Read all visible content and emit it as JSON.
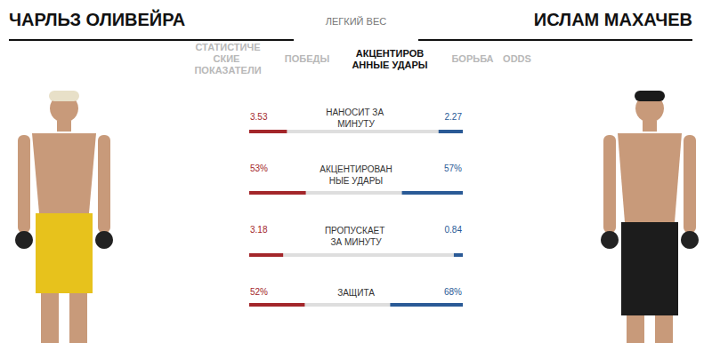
{
  "header": {
    "left_fighter": "ЧАРЛЬЗ ОЛИВЕЙРА",
    "division": "ЛЕГКИЙ ВЕС",
    "right_fighter": "ИСЛАМ МАХАЧЕВ"
  },
  "tabs": [
    {
      "label": "СТАТИСТИЧЕСКИЕ ПОКАЗАТЕЛИ",
      "active": false
    },
    {
      "label": "ПОБЕДЫ",
      "active": false
    },
    {
      "label": "АКЦЕНТИРОВАННЫЕ УДАРЫ",
      "active": true
    },
    {
      "label": "БОРЬБА",
      "active": false
    },
    {
      "label": "ODDS",
      "active": false
    }
  ],
  "chart_data": [
    {
      "type": "bar",
      "orientation": "horizontal",
      "title": "НАНОСИТ ЗА МИНУТУ",
      "xlim": [
        0,
        10
      ],
      "data_labels": true,
      "tick_labels": false,
      "series": [
        {
          "color": "#a3262a",
          "values": [
            3.53
          ]
        },
        {
          "color": "#2a5a96",
          "values": [
            2.27
          ]
        }
      ]
    },
    {
      "type": "bar",
      "orientation": "horizontal",
      "title": "АКЦЕНТИРОВАННЫЕ УДАРЫ",
      "xlim": [
        0,
        100
      ],
      "data_labels": true,
      "tick_labels": false,
      "series": [
        {
          "color": "#a3262a",
          "values": [
            53
          ],
          "value_labels": [
            "53%"
          ]
        },
        {
          "color": "#2a5a96",
          "values": [
            57
          ],
          "value_labels": [
            "57%"
          ]
        }
      ]
    },
    {
      "type": "bar",
      "orientation": "horizontal",
      "title": "ПРОПУСКАЕТ ЗА МИНУТУ",
      "xlim": [
        0,
        10
      ],
      "data_labels": true,
      "tick_labels": false,
      "series": [
        {
          "color": "#a3262a",
          "values": [
            3.18
          ]
        },
        {
          "color": "#2a5a96",
          "values": [
            0.84
          ]
        }
      ]
    },
    {
      "type": "bar",
      "orientation": "horizontal",
      "title": "ЗАЩИТА",
      "xlim": [
        0,
        100
      ],
      "data_labels": true,
      "tick_labels": false,
      "series": [
        {
          "color": "#a3262a",
          "values": [
            52
          ],
          "value_labels": [
            "52%"
          ]
        },
        {
          "color": "#2a5a96",
          "values": [
            68
          ],
          "value_labels": [
            "68%"
          ]
        }
      ]
    }
  ]
}
